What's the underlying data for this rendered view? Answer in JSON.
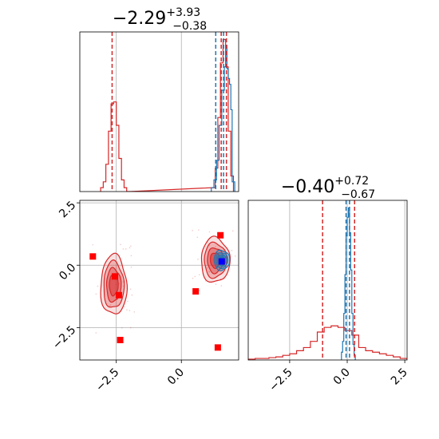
{
  "chart_data": [
    {
      "panel": "histogram-param-1",
      "type": "line",
      "title": {
        "value": "−2.29",
        "sup": "+3.93",
        "sub": "−0.38"
      },
      "xlim": [
        -3.9,
        2.2
      ],
      "grid": true,
      "series": [
        {
          "color": "#d62728",
          "bins": [
            -3.1,
            -3.0,
            -2.9,
            -2.8,
            -2.7,
            -2.6,
            -2.5,
            -2.4,
            -2.3,
            -2.2,
            -2.1,
            1.2,
            1.3,
            1.4,
            1.5,
            1.6,
            1.7,
            1.8,
            1.9
          ],
          "counts": [
            0.02,
            0.05,
            0.14,
            0.31,
            0.45,
            0.46,
            0.34,
            0.17,
            0.06,
            0.02,
            0,
            0.02,
            0.12,
            0.38,
            0.66,
            0.78,
            0.64,
            0.31,
            0.08
          ]
        },
        {
          "color": "#1f77b4",
          "bins": [
            1.15,
            1.25,
            1.35,
            1.45,
            1.55,
            1.65,
            1.7,
            1.75,
            1.8,
            1.85,
            1.9,
            1.95
          ],
          "counts": [
            0.02,
            0.06,
            0.16,
            0.34,
            0.52,
            0.64,
            0.75,
            0.63,
            0.58,
            0.55,
            0.42,
            0.05
          ]
        }
      ],
      "vlines": [
        {
          "x": -2.66,
          "color": "#d62728"
        },
        {
          "x": 1.53,
          "color": "#d62728"
        },
        {
          "x": 1.73,
          "color": "#d62728"
        },
        {
          "x": 1.32,
          "color": "#1f77b4"
        },
        {
          "x": 1.62,
          "color": "#1f77b4"
        }
      ]
    },
    {
      "panel": "joint-contour",
      "type": "scatter",
      "xlim": [
        -3.9,
        2.2
      ],
      "ylim": [
        -3.8,
        2.6
      ],
      "x_ticks": [
        -2.5,
        0.0
      ],
      "y_ticks": [
        2.5,
        0.0,
        -2.5
      ],
      "x_tick_labels": [
        "−2.5",
        "0.0"
      ],
      "y_tick_labels": [
        "2.5",
        "0.0",
        "−2.5"
      ],
      "grid": true,
      "contours": [
        {
          "color": "#d62728",
          "center": [
            -2.6,
            -0.8
          ],
          "spread": [
            0.5,
            1.2
          ]
        },
        {
          "color": "#d62728",
          "center": [
            1.3,
            0.2
          ],
          "spread": [
            0.55,
            0.9
          ]
        },
        {
          "color": "#1f77b4",
          "center": [
            1.55,
            0.2
          ],
          "spread": [
            0.3,
            0.4
          ]
        }
      ],
      "red_markers": [
        [
          -3.4,
          0.35
        ],
        [
          -2.55,
          -0.45
        ],
        [
          -2.35,
          -3.0
        ],
        [
          0.55,
          -1.05
        ],
        [
          1.4,
          -3.3
        ],
        [
          1.5,
          1.2
        ],
        [
          1.55,
          0.15
        ],
        [
          -2.4,
          -1.2
        ]
      ],
      "blue_markers": [
        [
          1.55,
          0.15
        ]
      ],
      "background_points_color": "#d62728"
    },
    {
      "panel": "histogram-param-2",
      "type": "line",
      "title": {
        "value": "−0.40",
        "sup": "+0.72",
        "sub": "−0.67"
      },
      "xlim": [
        -4.3,
        2.6
      ],
      "x_ticks": [
        -2.5,
        0.0,
        2.5
      ],
      "x_tick_labels": [
        "−2.5",
        "0.0",
        "2.5"
      ],
      "grid": true,
      "series": [
        {
          "color": "#d62728",
          "bins": [
            -4.3,
            -4.0,
            -3.7,
            -3.4,
            -3.1,
            -2.8,
            -2.5,
            -2.2,
            -1.9,
            -1.6,
            -1.3,
            -1.0,
            -0.7,
            -0.4,
            -0.1,
            0.2,
            0.5,
            0.8,
            1.1,
            1.4,
            1.7,
            2.0,
            2.3
          ],
          "counts": [
            0.005,
            0.01,
            0.01,
            0.015,
            0.02,
            0.03,
            0.04,
            0.06,
            0.08,
            0.12,
            0.18,
            0.21,
            0.22,
            0.21,
            0.19,
            0.16,
            0.08,
            0.06,
            0.05,
            0.04,
            0.03,
            0.02,
            0.01
          ]
        },
        {
          "color": "#1f77b4",
          "bins": [
            -0.25,
            -0.2,
            -0.15,
            -0.1,
            -0.05,
            0.0,
            0.05,
            0.1,
            0.15,
            0.2,
            0.25,
            0.3
          ],
          "counts": [
            0.05,
            0.12,
            0.3,
            0.55,
            0.8,
            0.92,
            0.98,
            0.82,
            0.58,
            0.3,
            0.1,
            0.03
          ]
        }
      ],
      "vlines": [
        {
          "x": -1.07,
          "color": "#d62728"
        },
        {
          "x": 0.32,
          "color": "#d62728"
        },
        {
          "x": -0.05,
          "color": "#1f77b4"
        },
        {
          "x": 0.1,
          "color": "#1f77b4"
        }
      ]
    }
  ]
}
